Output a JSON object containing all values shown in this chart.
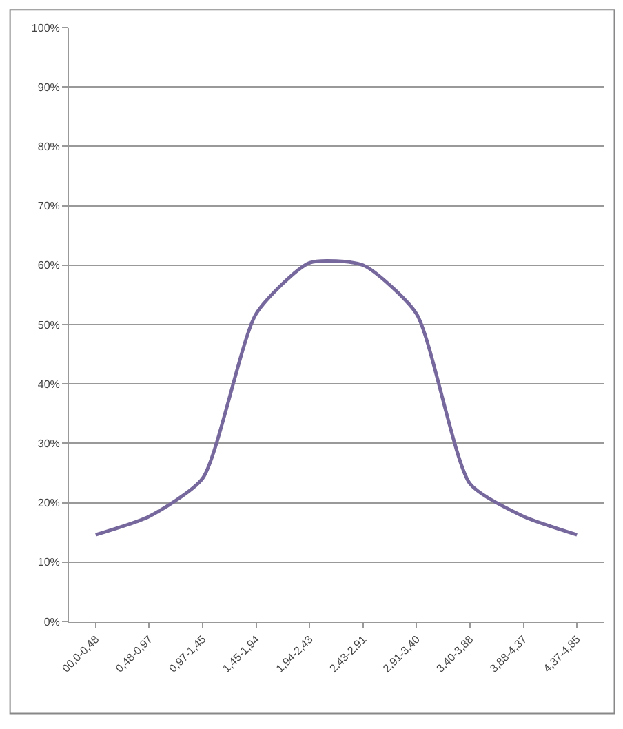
{
  "chart_data": {
    "type": "line",
    "categories": [
      "00,0-0,48",
      "0,48-0,97",
      "0,97-1,45",
      "1,45-1,94",
      "1,94-2,43",
      "2,43-2,91",
      "2,91-3,40",
      "3,40-3,88",
      "3,88-4,37",
      "4,37-4,85"
    ],
    "series": [
      {
        "color": "#76679c",
        "values": [
          14.6,
          17.7,
          24.1,
          51.8,
          60.4,
          60.0,
          51.8,
          23.2,
          17.7,
          14.6
        ]
      }
    ],
    "ylim": [
      0,
      100
    ],
    "yticks": [
      {
        "value": 0,
        "label": "0%"
      },
      {
        "value": 10,
        "label": "10%"
      },
      {
        "value": 20,
        "label": "20%"
      },
      {
        "value": 30,
        "label": "30%"
      },
      {
        "value": 40,
        "label": "40%"
      },
      {
        "value": 50,
        "label": "50%"
      },
      {
        "value": 60,
        "label": "60%"
      },
      {
        "value": 70,
        "label": "70%"
      },
      {
        "value": 80,
        "label": "80%"
      },
      {
        "value": 90,
        "label": "90%"
      },
      {
        "value": 100,
        "label": "100%"
      }
    ],
    "grid": "y",
    "marker": "none",
    "line_style": "solid"
  }
}
